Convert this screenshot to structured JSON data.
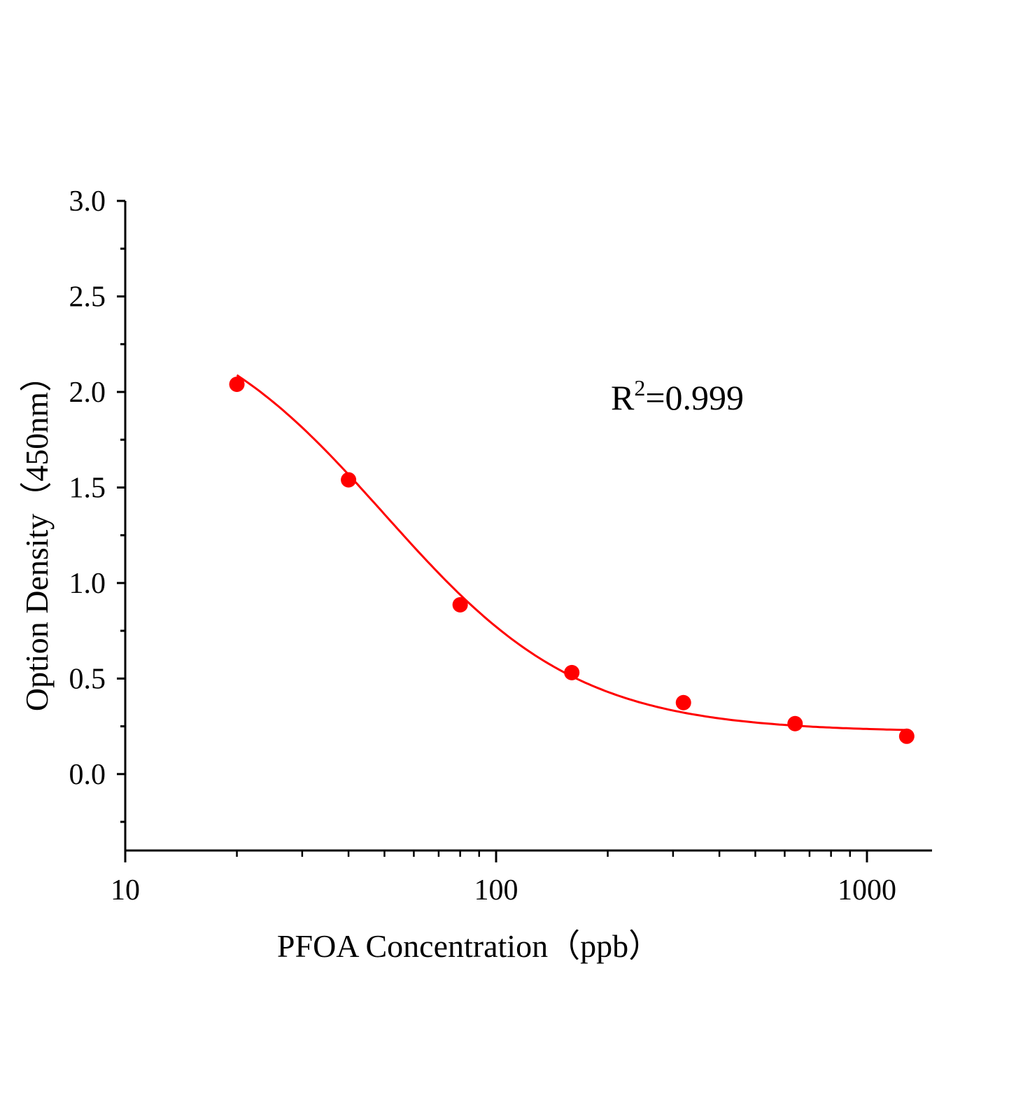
{
  "chart_data": {
    "type": "scatter",
    "title": "",
    "xlabel": "PFOA Concentration（ppb）",
    "ylabel": "Option Density（450nm）",
    "x_scale": "log",
    "xlim": [
      10,
      1500
    ],
    "ylim": [
      -0.4,
      3.0
    ],
    "x_ticks": [
      "10",
      "100",
      "1000"
    ],
    "y_ticks": [
      "0.0",
      "0.5",
      "1.0",
      "1.5",
      "2.0",
      "2.5",
      "3.0"
    ],
    "grid": false,
    "legend": "none",
    "annotation": {
      "prefix": "R",
      "sup": "2",
      "suffix": "=0.999"
    },
    "series": [
      {
        "x": [
          20,
          40,
          80,
          160,
          320,
          640,
          1280
        ],
        "y": [
          2.04,
          1.54,
          0.886,
          0.531,
          0.374,
          0.264,
          0.198
        ],
        "color": "#ff0000",
        "fit": {
          "type": "4PL",
          "A": 2.5,
          "D": 0.22,
          "C": 50,
          "B": 1.65
        }
      }
    ]
  }
}
